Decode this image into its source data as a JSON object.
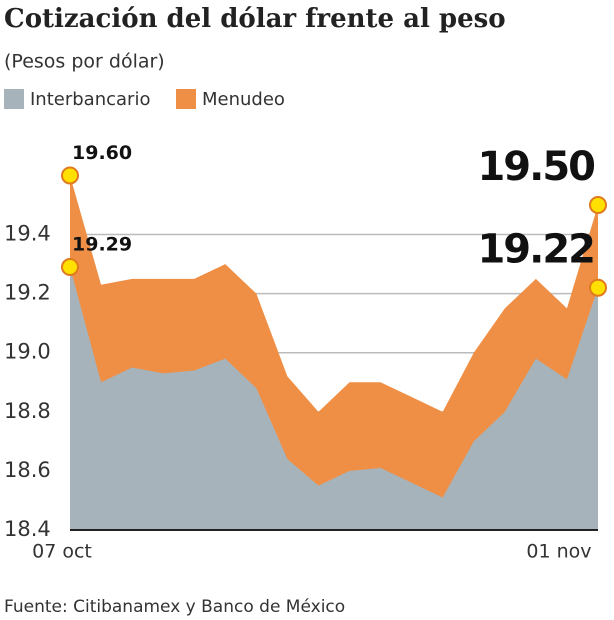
{
  "chart_data": {
    "type": "area",
    "title": "Cotización del dólar frente al peso",
    "subtitle": "(Pesos por dólar)",
    "source": "Fuente: Citibanamex y Banco de México",
    "categories": [
      "07 oct",
      null,
      null,
      null,
      null,
      null,
      null,
      null,
      null,
      null,
      null,
      null,
      null,
      null,
      null,
      null,
      "01 nov",
      null
    ],
    "series": [
      {
        "name": "Menudeo",
        "color": "#ef8f45",
        "values": [
          19.6,
          19.23,
          19.25,
          19.25,
          19.25,
          19.3,
          19.2,
          18.92,
          18.8,
          18.9,
          18.9,
          18.85,
          18.8,
          19.0,
          19.15,
          19.25,
          19.15,
          19.5
        ],
        "value_labels": [
          "19.60",
          null,
          null,
          null,
          null,
          null,
          null,
          null,
          null,
          null,
          null,
          null,
          null,
          null,
          null,
          null,
          null,
          "19.50"
        ]
      },
      {
        "name": "Interbancario",
        "color": "#a7b3bb",
        "values": [
          19.29,
          18.9,
          18.95,
          18.93,
          18.94,
          18.98,
          18.88,
          18.64,
          18.55,
          18.6,
          18.61,
          18.56,
          18.51,
          18.7,
          18.8,
          18.98,
          18.91,
          19.22
        ],
        "value_labels": [
          "19.29",
          null,
          null,
          null,
          null,
          null,
          null,
          null,
          null,
          null,
          null,
          null,
          null,
          null,
          null,
          null,
          null,
          "19.22"
        ]
      }
    ],
    "legend_order": [
      "Interbancario",
      "Menudeo"
    ],
    "ylim": [
      18.4,
      19.72
    ],
    "yticks": [
      18.4,
      18.6,
      18.8,
      {
        "value": 19,
        "label": "19.0"
      },
      19.2,
      19.4
    ],
    "grid": true
  }
}
